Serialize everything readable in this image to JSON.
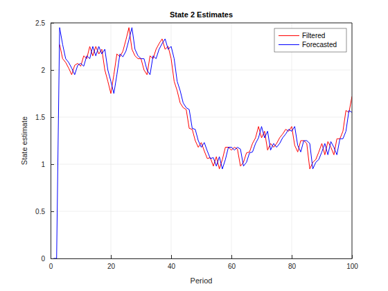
{
  "chart_data": {
    "type": "line",
    "title": "State 2 Estimates",
    "x_label": "Period",
    "y_label": "State estimate",
    "x": [
      1,
      2,
      3,
      4,
      5,
      6,
      7,
      8,
      9,
      10,
      11,
      12,
      13,
      14,
      15,
      16,
      17,
      18,
      19,
      20,
      21,
      22,
      23,
      24,
      25,
      26,
      27,
      28,
      29,
      30,
      31,
      32,
      33,
      34,
      35,
      36,
      37,
      38,
      39,
      40,
      41,
      42,
      43,
      44,
      45,
      46,
      47,
      48,
      49,
      50,
      51,
      52,
      53,
      54,
      55,
      56,
      57,
      58,
      59,
      60,
      61,
      62,
      63,
      64,
      65,
      66,
      67,
      68,
      69,
      70,
      71,
      72,
      73,
      74,
      75,
      76,
      77,
      78,
      79,
      80,
      81,
      82,
      83,
      84,
      85,
      86,
      87,
      88,
      89,
      90,
      91,
      92,
      93,
      94,
      95,
      96,
      97,
      98,
      99,
      100
    ],
    "series": [
      {
        "name": "Filtered",
        "color": "#ff0000",
        "line_style": "solid",
        "values": [
          null,
          null,
          2.27,
          2.12,
          2.08,
          2.02,
          1.95,
          2.05,
          2.07,
          2.04,
          2.15,
          2.12,
          2.25,
          2.15,
          2.25,
          2.17,
          2.22,
          2.0,
          1.88,
          1.75,
          1.95,
          2.17,
          2.14,
          2.2,
          2.32,
          2.45,
          2.22,
          2.15,
          2.12,
          2.12,
          2.0,
          1.95,
          2.15,
          2.12,
          2.22,
          2.28,
          2.33,
          2.22,
          2.25,
          2.12,
          1.88,
          1.78,
          1.65,
          1.6,
          1.58,
          1.38,
          1.37,
          1.25,
          1.18,
          1.23,
          1.14,
          1.06,
          1.07,
          0.98,
          1.08,
          0.95,
          1.05,
          1.18,
          1.18,
          1.15,
          1.18,
          1.16,
          0.98,
          1.02,
          1.12,
          1.13,
          1.22,
          1.28,
          1.4,
          1.28,
          1.35,
          1.15,
          1.22,
          1.18,
          1.22,
          1.28,
          1.32,
          1.37,
          1.35,
          1.4,
          1.2,
          1.13,
          1.25,
          1.25,
          1.22,
          0.95,
          1.02,
          1.05,
          1.13,
          1.22,
          1.1,
          1.24,
          1.18,
          1.1,
          1.27,
          1.27,
          1.35,
          1.57,
          1.55,
          1.72
        ]
      },
      {
        "name": "Forecasted",
        "color": "#0000ff",
        "line_style": "solid",
        "values": [
          0,
          0,
          2.45,
          2.27,
          2.12,
          2.08,
          2.02,
          1.95,
          2.05,
          2.07,
          2.04,
          2.15,
          2.12,
          2.25,
          2.15,
          2.25,
          2.17,
          2.22,
          2.0,
          1.88,
          1.75,
          1.95,
          2.17,
          2.14,
          2.2,
          2.32,
          2.45,
          2.22,
          2.15,
          2.12,
          2.12,
          2.0,
          1.95,
          2.15,
          2.12,
          2.22,
          2.28,
          2.33,
          2.22,
          2.25,
          2.12,
          1.88,
          1.78,
          1.65,
          1.6,
          1.58,
          1.38,
          1.37,
          1.25,
          1.18,
          1.23,
          1.14,
          1.06,
          1.07,
          0.98,
          1.08,
          0.95,
          1.05,
          1.18,
          1.18,
          1.15,
          1.18,
          1.16,
          0.98,
          1.02,
          1.12,
          1.13,
          1.22,
          1.28,
          1.4,
          1.28,
          1.35,
          1.15,
          1.22,
          1.18,
          1.22,
          1.28,
          1.32,
          1.37,
          1.35,
          1.4,
          1.2,
          1.13,
          1.25,
          1.25,
          1.22,
          0.95,
          1.02,
          1.05,
          1.13,
          1.22,
          1.1,
          1.24,
          1.18,
          1.1,
          1.27,
          1.27,
          1.35,
          1.57,
          1.55
        ]
      }
    ],
    "xlim": [
      0,
      100
    ],
    "xticks": [
      0,
      20,
      40,
      60,
      80,
      100
    ],
    "ylim": [
      0,
      2.5
    ],
    "yticks": [
      0,
      0.5,
      1,
      1.5,
      2,
      2.5
    ],
    "grid": true,
    "legend": "northeast"
  }
}
